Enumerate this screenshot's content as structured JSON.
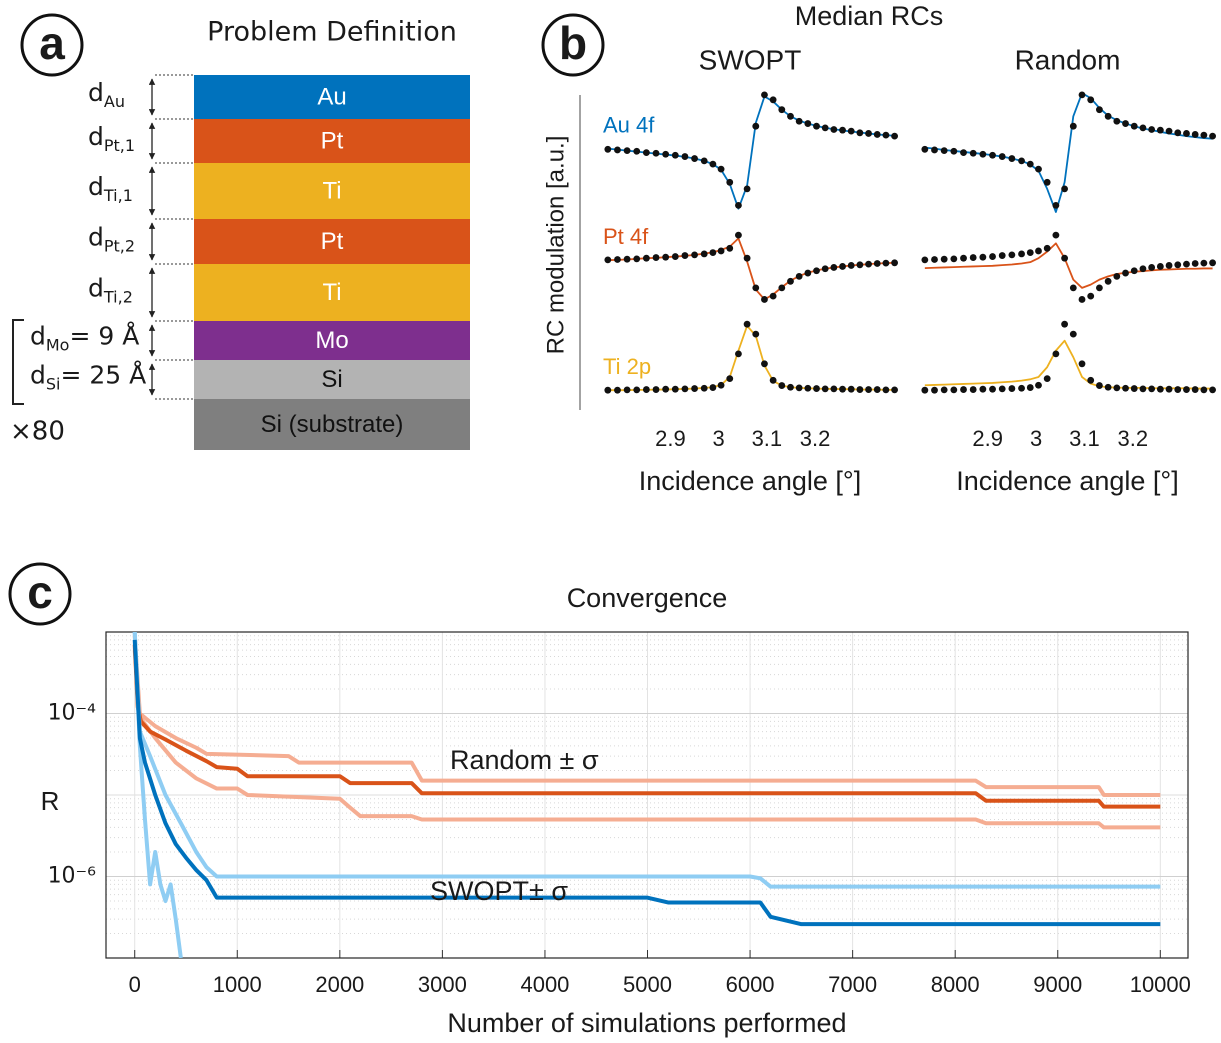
{
  "panel_labels": [
    "a",
    "b",
    "c"
  ],
  "diagram": {
    "title": "Problem Definition",
    "layers": [
      {
        "name": "Au",
        "color": "#0072bd",
        "thickness": {
          "main": "d",
          "sub": "Au"
        }
      },
      {
        "name": "Pt",
        "color": "#d95319",
        "thickness": {
          "main": "d",
          "sub": "Pt,1"
        }
      },
      {
        "name": "Ti",
        "color": "#edb120",
        "thickness": {
          "main": "d",
          "sub": "Ti,1"
        }
      },
      {
        "name": "Pt",
        "color": "#d95319",
        "thickness": {
          "main": "d",
          "sub": "Pt,2"
        }
      },
      {
        "name": "Ti",
        "color": "#edb120",
        "thickness": {
          "main": "d",
          "sub": "Ti,2"
        }
      },
      {
        "name": "Mo",
        "color": "#7e2f8e",
        "thickness": {
          "main": "d",
          "sub": "Mo",
          "rest": "= 9 Å"
        }
      },
      {
        "name": "Si",
        "color": "#b3b3b3",
        "thickness": {
          "main": "d",
          "sub": "Si",
          "rest": "= 25 Å"
        }
      },
      {
        "name": "Si (substrate)",
        "color": "#7f7f7f"
      }
    ],
    "repeat": "×80"
  },
  "panel_b_title": "Median RCs",
  "chart_data": [
    {
      "type": "line",
      "subtitle": "SWOPT",
      "xlabel": "Incidence angle [°]",
      "ylabel": "RC modulation [a.u.]",
      "x": [
        2.77,
        2.79,
        2.81,
        2.83,
        2.85,
        2.87,
        2.89,
        2.91,
        2.93,
        2.95,
        2.97,
        2.988,
        3.005,
        3.023,
        3.041,
        3.059,
        3.077,
        3.095,
        3.113,
        3.131,
        3.149,
        3.167,
        3.185,
        3.203,
        3.221,
        3.239,
        3.257,
        3.275,
        3.293,
        3.311,
        3.329,
        3.347,
        3.365
      ],
      "xlim": [
        2.76,
        3.37
      ],
      "xticks": [
        2.9,
        3,
        3.1,
        3.2
      ],
      "ylim": [
        0,
        10
      ],
      "series": [
        {
          "name": "Au 4f",
          "color": "#0072bd",
          "values": [
            7.92,
            7.89,
            7.86,
            7.83,
            7.8,
            7.77,
            7.74,
            7.71,
            7.67,
            7.62,
            7.55,
            7.45,
            7.28,
            6.85,
            6.1,
            6.8,
            8.7,
            9.5,
            9.35,
            9.1,
            8.9,
            8.77,
            8.68,
            8.61,
            8.55,
            8.51,
            8.47,
            8.44,
            8.41,
            8.38,
            8.35,
            8.33,
            8.31
          ],
          "measured": [
            7.9,
            7.88,
            7.86,
            7.84,
            7.8,
            7.78,
            7.75,
            7.72,
            7.68,
            7.62,
            7.55,
            7.45,
            7.3,
            6.9,
            6.2,
            6.7,
            8.6,
            9.55,
            9.4,
            9.1,
            8.9,
            8.75,
            8.68,
            8.6,
            8.55,
            8.5,
            8.48,
            8.45,
            8.4,
            8.38,
            8.35,
            8.33,
            8.3
          ]
        },
        {
          "name": "Pt 4f",
          "color": "#d95319",
          "values": [
            4.54,
            4.55,
            4.56,
            4.58,
            4.6,
            4.61,
            4.63,
            4.65,
            4.67,
            4.7,
            4.74,
            4.78,
            4.85,
            4.95,
            5.2,
            4.5,
            3.65,
            3.35,
            3.5,
            3.72,
            3.92,
            4.06,
            4.16,
            4.23,
            4.28,
            4.32,
            4.35,
            4.38,
            4.4,
            4.42,
            4.44,
            4.45,
            4.46
          ],
          "measured": [
            4.55,
            4.56,
            4.57,
            4.58,
            4.6,
            4.62,
            4.63,
            4.65,
            4.68,
            4.7,
            4.73,
            4.77,
            4.82,
            4.9,
            5.3,
            4.6,
            3.7,
            3.35,
            3.45,
            3.7,
            3.9,
            4.05,
            4.15,
            4.22,
            4.28,
            4.32,
            4.35,
            4.38,
            4.4,
            4.42,
            4.44,
            4.45,
            4.46
          ]
        },
        {
          "name": "Ti 2p",
          "color": "#edb120",
          "values": [
            0.6,
            0.6,
            0.6,
            0.61,
            0.61,
            0.62,
            0.62,
            0.63,
            0.64,
            0.65,
            0.67,
            0.69,
            0.76,
            1.0,
            1.8,
            2.55,
            2.25,
            1.35,
            0.88,
            0.74,
            0.69,
            0.67,
            0.66,
            0.65,
            0.64,
            0.64,
            0.63,
            0.63,
            0.62,
            0.62,
            0.62,
            0.61,
            0.61
          ],
          "measured": [
            0.6,
            0.6,
            0.61,
            0.61,
            0.62,
            0.62,
            0.63,
            0.63,
            0.64,
            0.65,
            0.66,
            0.68,
            0.75,
            0.95,
            1.7,
            2.6,
            2.3,
            1.4,
            0.9,
            0.74,
            0.69,
            0.67,
            0.66,
            0.65,
            0.64,
            0.64,
            0.63,
            0.63,
            0.62,
            0.62,
            0.62,
            0.61,
            0.61
          ]
        }
      ]
    },
    {
      "type": "line",
      "subtitle": "Random",
      "xlabel": "Incidence angle [°]",
      "x": [
        2.77,
        2.79,
        2.81,
        2.83,
        2.85,
        2.87,
        2.89,
        2.91,
        2.93,
        2.95,
        2.97,
        2.988,
        3.005,
        3.023,
        3.041,
        3.059,
        3.077,
        3.095,
        3.113,
        3.131,
        3.149,
        3.167,
        3.185,
        3.203,
        3.221,
        3.239,
        3.257,
        3.275,
        3.293,
        3.311,
        3.329,
        3.347,
        3.365
      ],
      "xlim": [
        2.76,
        3.37
      ],
      "xticks": [
        2.9,
        3,
        3.1,
        3.2
      ],
      "ylim": [
        0,
        10
      ],
      "series": [
        {
          "color": "#0072bd",
          "values": [
            7.95,
            7.92,
            7.88,
            7.85,
            7.82,
            7.79,
            7.76,
            7.72,
            7.68,
            7.62,
            7.55,
            7.44,
            7.25,
            6.7,
            6.0,
            6.9,
            8.9,
            9.6,
            9.45,
            9.15,
            8.92,
            8.78,
            8.68,
            8.6,
            8.53,
            8.48,
            8.43,
            8.38,
            8.34,
            8.3,
            8.27,
            8.24,
            8.22
          ],
          "measured": [
            7.9,
            7.88,
            7.86,
            7.84,
            7.8,
            7.78,
            7.75,
            7.72,
            7.68,
            7.62,
            7.55,
            7.45,
            7.3,
            6.9,
            6.2,
            6.7,
            8.6,
            9.55,
            9.4,
            9.1,
            8.9,
            8.75,
            8.68,
            8.6,
            8.55,
            8.5,
            8.48,
            8.45,
            8.4,
            8.38,
            8.35,
            8.33,
            8.3
          ]
        },
        {
          "color": "#d95319",
          "values": [
            4.3,
            4.31,
            4.32,
            4.33,
            4.34,
            4.35,
            4.36,
            4.37,
            4.39,
            4.41,
            4.44,
            4.48,
            4.6,
            4.8,
            5.05,
            4.6,
            3.95,
            3.7,
            3.8,
            3.95,
            4.05,
            4.12,
            4.16,
            4.19,
            4.21,
            4.23,
            4.25,
            4.26,
            4.27,
            4.28,
            4.28,
            4.29,
            4.29
          ],
          "measured": [
            4.55,
            4.56,
            4.57,
            4.58,
            4.6,
            4.62,
            4.63,
            4.65,
            4.68,
            4.7,
            4.73,
            4.77,
            4.82,
            4.9,
            5.3,
            4.6,
            3.7,
            3.35,
            3.45,
            3.7,
            3.9,
            4.05,
            4.15,
            4.22,
            4.28,
            4.32,
            4.35,
            4.38,
            4.4,
            4.42,
            4.44,
            4.45,
            4.46
          ]
        },
        {
          "color": "#edb120",
          "values": [
            0.75,
            0.76,
            0.77,
            0.78,
            0.79,
            0.8,
            0.81,
            0.82,
            0.84,
            0.86,
            0.89,
            0.93,
            1.0,
            1.3,
            1.8,
            2.1,
            1.6,
            1.0,
            0.8,
            0.72,
            0.69,
            0.68,
            0.67,
            0.67,
            0.67,
            0.66,
            0.66,
            0.66,
            0.66,
            0.66,
            0.65,
            0.65,
            0.65
          ],
          "measured": [
            0.6,
            0.6,
            0.61,
            0.61,
            0.62,
            0.62,
            0.63,
            0.63,
            0.64,
            0.65,
            0.66,
            0.68,
            0.75,
            0.95,
            1.7,
            2.6,
            2.3,
            1.4,
            0.9,
            0.74,
            0.69,
            0.67,
            0.66,
            0.65,
            0.64,
            0.64,
            0.63,
            0.63,
            0.62,
            0.62,
            0.62,
            0.61,
            0.61
          ]
        }
      ]
    },
    {
      "type": "line",
      "title": "Convergence",
      "xlabel": "Number of simulations performed",
      "ylabel": "R",
      "log_y": true,
      "grid": true,
      "box": true,
      "xlim": [
        -280,
        10270
      ],
      "xticks": [
        0,
        1000,
        2000,
        3000,
        4000,
        5000,
        6000,
        7000,
        8000,
        9000,
        10000
      ],
      "ylim": [
        1e-07,
        0.001
      ],
      "yticks": [
        {
          "value": 0.0001,
          "label": "10⁻⁴"
        },
        {
          "value": 1e-06,
          "label": "10⁻⁶"
        }
      ],
      "series": [
        {
          "color": "#f5ad92",
          "x": [
            0,
            50,
            200,
            400,
            600,
            700,
            1500,
            1600,
            2700,
            2800,
            8200,
            8300,
            9400,
            9450,
            10000
          ],
          "values": [
            0.0009,
            0.0001,
            7e-05,
            5e-05,
            3.8e-05,
            3.2e-05,
            3e-05,
            2.5e-05,
            2.5e-05,
            1.5e-05,
            1.5e-05,
            1.25e-05,
            1.25e-05,
            1e-05,
            1e-05
          ]
        },
        {
          "color": "#f5ad92",
          "x": [
            0,
            50,
            200,
            400,
            600,
            800,
            1000,
            1100,
            2000,
            2100,
            2200,
            2700,
            2800,
            8200,
            8300,
            9400,
            9450,
            10000
          ],
          "values": [
            0.0006,
            9e-05,
            5e-05,
            2.5e-05,
            1.6e-05,
            1.2e-05,
            1.2e-05,
            1e-05,
            9e-06,
            7e-06,
            5.5e-06,
            5.5e-06,
            5e-06,
            5e-06,
            4.5e-06,
            4.5e-06,
            4e-06,
            4e-06
          ]
        },
        {
          "color": "#d95319",
          "x": [
            0,
            30,
            60,
            150,
            300,
            500,
            700,
            800,
            1000,
            1100,
            2000,
            2100,
            2700,
            2800,
            8200,
            8300,
            9400,
            9450,
            10000
          ],
          "values": [
            0.0007,
            0.00012,
            8e-05,
            6e-05,
            4.8e-05,
            3.5e-05,
            2.6e-05,
            2.2e-05,
            2.1e-05,
            1.7e-05,
            1.7e-05,
            1.4e-05,
            1.4e-05,
            1.05e-05,
            1.05e-05,
            8.5e-06,
            8.5e-06,
            7.2e-06,
            7.2e-06
          ]
        },
        {
          "color": "#8fcdf3",
          "x": [
            0,
            50,
            150,
            300,
            450,
            600,
            700,
            800,
            6000,
            6100,
            6200,
            10000
          ],
          "values": [
            0.001,
            6e-05,
            3e-05,
            1e-05,
            4.5e-06,
            2e-06,
            1.3e-06,
            1e-06,
            1e-06,
            9.5e-07,
            7.5e-07,
            7.5e-07
          ]
        },
        {
          "color": "#8fcdf3",
          "x": [
            0,
            50,
            100,
            150,
            200,
            250,
            300,
            350,
            400,
            450
          ],
          "values": [
            0.001,
            4e-05,
            5e-06,
            8e-07,
            2e-06,
            8e-07,
            5e-07,
            8e-07,
            3e-07,
            1e-07
          ]
        },
        {
          "color": "#0072bd",
          "x": [
            0,
            50,
            100,
            200,
            300,
            400,
            500,
            600,
            700,
            800,
            5000,
            5200,
            6100,
            6200,
            6500,
            10000
          ],
          "values": [
            0.0008,
            5e-05,
            2.5e-05,
            1e-05,
            4.5e-06,
            2.5e-06,
            1.7e-06,
            1.2e-06,
            9e-07,
            5.5e-07,
            5.5e-07,
            4.8e-07,
            4.8e-07,
            3.2e-07,
            2.6e-07,
            2.6e-07
          ]
        }
      ],
      "annotations": [
        "Random ± σ",
        "SWOPT± σ"
      ]
    }
  ]
}
